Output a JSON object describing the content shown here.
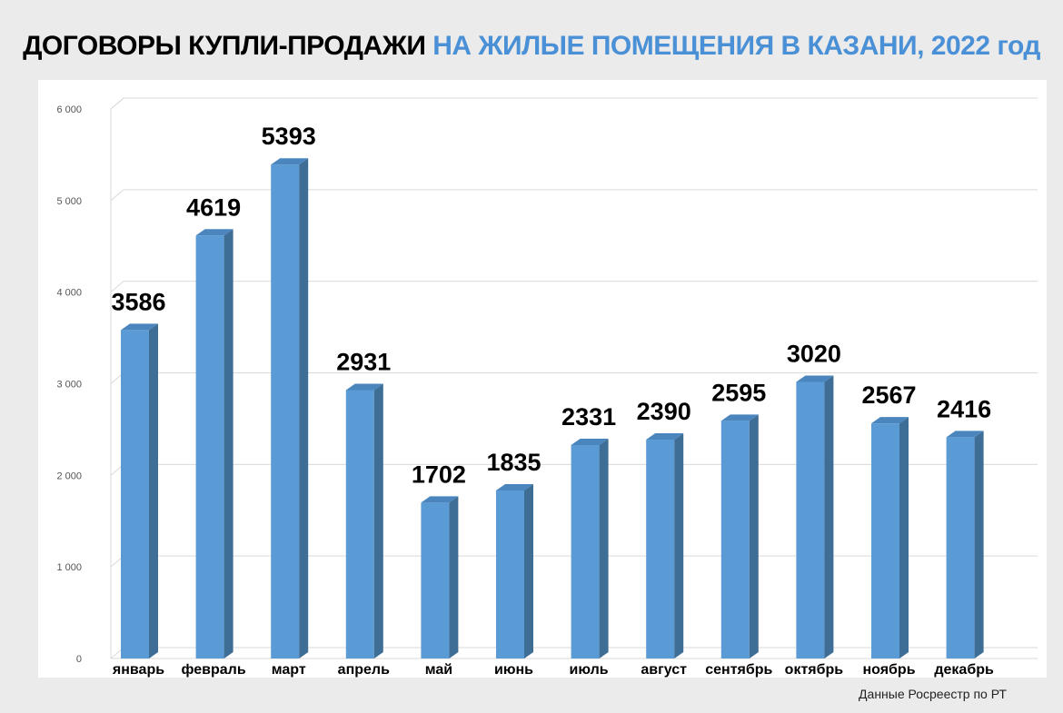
{
  "title": {
    "main": "ДОГОВОРЫ КУПЛИ-ПРОДАЖИ",
    "accent": "НА ЖИЛЫЕ ПОМЕЩЕНИЯ В КАЗАНИ, 2022 год"
  },
  "source_note": "Данные Росреестр по РТ",
  "colors": {
    "bar_front": "#5b9bd5",
    "bar_side": "#3e6d96",
    "bar_top": "#4a86bd",
    "title_accent": "#4a90d6",
    "grid": "#d9d9d9"
  },
  "chart_data": {
    "type": "bar",
    "categories": [
      "январь",
      "февраль",
      "март",
      "апрель",
      "май",
      "июнь",
      "июль",
      "август",
      "сентябрь",
      "октябрь",
      "ноябрь",
      "декабрь"
    ],
    "values": [
      3586,
      4619,
      5393,
      2931,
      1702,
      1835,
      2331,
      2390,
      2595,
      3020,
      2567,
      2416
    ],
    "yticks": [
      "0",
      "1 000",
      "2 000",
      "3 000",
      "4 000",
      "5 000",
      "6 000"
    ],
    "ylim": [
      0,
      6000
    ],
    "grid": true,
    "legend": "none",
    "style": "3d-column"
  }
}
